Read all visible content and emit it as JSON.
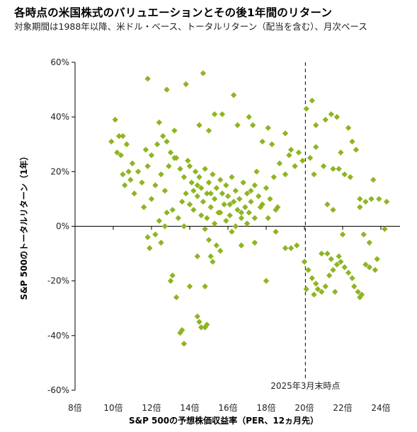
{
  "header": {
    "title": "各時点の米国株式のバリュエーションとその後1年間のリターン",
    "subtitle": "対象期間は1988年以降、米ドル・ベース、トータルリターン（配当を含む）、月次ベース"
  },
  "chart_data": {
    "type": "scatter",
    "xlabel": "S&P 500の予想株価収益率（PER、12ヵ月先）",
    "ylabel": "S&P 500のトータルリターン（1年）",
    "xlim": [
      8,
      25
    ],
    "ylim": [
      -60,
      60
    ],
    "x_ticks": [
      8,
      10,
      12,
      14,
      16,
      18,
      20,
      22,
      24
    ],
    "x_tick_labels": [
      "8倍",
      "10倍",
      "12倍",
      "14倍",
      "16倍",
      "18倍",
      "20倍",
      "22倍",
      "24倍"
    ],
    "y_ticks": [
      60,
      40,
      20,
      0,
      -20,
      -40,
      -60
    ],
    "y_tick_labels": [
      "60%",
      "40%",
      "20%",
      "0%",
      "-20%",
      "-40%",
      "-60%"
    ],
    "grid": false,
    "marker_color": "#8db522",
    "marker_shape": "diamond",
    "reference_line": {
      "x": 20.05,
      "style": "dashed",
      "label": "2025年3月末時点"
    },
    "points": [
      [
        10.1,
        39
      ],
      [
        9.9,
        31
      ],
      [
        10.3,
        33
      ],
      [
        10.5,
        33
      ],
      [
        10.2,
        27
      ],
      [
        10.4,
        26
      ],
      [
        10.7,
        30
      ],
      [
        10.8,
        20
      ],
      [
        11.0,
        23
      ],
      [
        10.9,
        17
      ],
      [
        10.6,
        15
      ],
      [
        11.1,
        12
      ],
      [
        11.5,
        16
      ],
      [
        11.3,
        20
      ],
      [
        10.5,
        19
      ],
      [
        11.8,
        22
      ],
      [
        12.0,
        26
      ],
      [
        11.7,
        28
      ],
      [
        12.4,
        38
      ],
      [
        12.6,
        33
      ],
      [
        12.3,
        30
      ],
      [
        12.8,
        31
      ],
      [
        13.0,
        27
      ],
      [
        13.2,
        25
      ],
      [
        12.9,
        22
      ],
      [
        12.5,
        19
      ],
      [
        12.2,
        15
      ],
      [
        12.7,
        13
      ],
      [
        12.0,
        10
      ],
      [
        11.6,
        7
      ],
      [
        12.8,
        5
      ],
      [
        12.4,
        2
      ],
      [
        12.7,
        0
      ],
      [
        11.8,
        54
      ],
      [
        12.8,
        50
      ],
      [
        13.8,
        52
      ],
      [
        14.7,
        56
      ],
      [
        15.3,
        41
      ],
      [
        15.7,
        41
      ],
      [
        14.5,
        37
      ],
      [
        15.0,
        35
      ],
      [
        16.5,
        37
      ],
      [
        17.1,
        40
      ],
      [
        17.3,
        37
      ],
      [
        18.1,
        36
      ],
      [
        17.8,
        31
      ],
      [
        18.3,
        30
      ],
      [
        19.0,
        34
      ],
      [
        19.3,
        28
      ],
      [
        13.2,
        35
      ],
      [
        16.3,
        48
      ],
      [
        13.3,
        25
      ],
      [
        13.5,
        21
      ],
      [
        13.7,
        18
      ],
      [
        13.9,
        24
      ],
      [
        14.0,
        22
      ],
      [
        14.1,
        16
      ],
      [
        14.2,
        13
      ],
      [
        14.3,
        20
      ],
      [
        14.4,
        11
      ],
      [
        14.5,
        18
      ],
      [
        14.6,
        14
      ],
      [
        14.7,
        9
      ],
      [
        14.8,
        21
      ],
      [
        14.9,
        12
      ],
      [
        15.0,
        16
      ],
      [
        15.1,
        7
      ],
      [
        15.2,
        19
      ],
      [
        15.3,
        10
      ],
      [
        15.4,
        14
      ],
      [
        15.5,
        5
      ],
      [
        15.6,
        17
      ],
      [
        15.7,
        12
      ],
      [
        15.8,
        8
      ],
      [
        15.9,
        15
      ],
      [
        16.0,
        11
      ],
      [
        16.1,
        4
      ],
      [
        16.2,
        18
      ],
      [
        16.3,
        9
      ],
      [
        16.4,
        13
      ],
      [
        16.5,
        6
      ],
      [
        16.6,
        10
      ],
      [
        16.7,
        3
      ],
      [
        16.8,
        16
      ],
      [
        16.9,
        7
      ],
      [
        17.0,
        12
      ],
      [
        17.1,
        5
      ],
      [
        17.2,
        9
      ],
      [
        17.4,
        15
      ],
      [
        17.5,
        20
      ],
      [
        17.6,
        11
      ],
      [
        17.8,
        8
      ],
      [
        18.0,
        14
      ],
      [
        18.2,
        10
      ],
      [
        18.4,
        18
      ],
      [
        18.5,
        6
      ],
      [
        18.7,
        23
      ],
      [
        19.0,
        19
      ],
      [
        19.2,
        26
      ],
      [
        19.5,
        22
      ],
      [
        19.7,
        27
      ],
      [
        19.9,
        24
      ],
      [
        13.6,
        9
      ],
      [
        13.8,
        12
      ],
      [
        14.0,
        8
      ],
      [
        14.2,
        6
      ],
      [
        14.4,
        15
      ],
      [
        14.6,
        4
      ],
      [
        14.9,
        3
      ],
      [
        15.1,
        12
      ],
      [
        15.3,
        1
      ],
      [
        15.6,
        5
      ],
      [
        15.9,
        2
      ],
      [
        16.1,
        8
      ],
      [
        16.4,
        0
      ],
      [
        16.7,
        5
      ],
      [
        17.0,
        1
      ],
      [
        17.2,
        13
      ],
      [
        17.4,
        3
      ],
      [
        17.7,
        7
      ],
      [
        18.1,
        3
      ],
      [
        18.6,
        7
      ],
      [
        13.1,
        6
      ],
      [
        13.4,
        3
      ],
      [
        13.7,
        0
      ],
      [
        12.2,
        -3
      ],
      [
        12.5,
        -6
      ],
      [
        11.8,
        -4
      ],
      [
        11.9,
        -8
      ],
      [
        14.8,
        -1
      ],
      [
        15.0,
        -5
      ],
      [
        15.4,
        -7
      ],
      [
        15.6,
        -9
      ],
      [
        16.2,
        -2
      ],
      [
        16.7,
        -7
      ],
      [
        17.4,
        -6
      ],
      [
        18.5,
        -2
      ],
      [
        19.0,
        -8
      ],
      [
        19.3,
        -8
      ],
      [
        19.6,
        -7
      ],
      [
        18.0,
        -20
      ],
      [
        14.4,
        -11
      ],
      [
        15.1,
        -11
      ],
      [
        15.2,
        -13
      ],
      [
        13.1,
        -18
      ],
      [
        13.0,
        -20
      ],
      [
        13.3,
        -26
      ],
      [
        14.0,
        -22
      ],
      [
        14.8,
        -22
      ],
      [
        13.6,
        -38
      ],
      [
        13.5,
        -39
      ],
      [
        14.4,
        -33
      ],
      [
        14.5,
        -35
      ],
      [
        14.6,
        -37
      ],
      [
        14.8,
        -37
      ],
      [
        14.9,
        -36
      ],
      [
        13.7,
        -43
      ],
      [
        20.1,
        43
      ],
      [
        20.4,
        46
      ],
      [
        20.6,
        37
      ],
      [
        21.1,
        39
      ],
      [
        21.4,
        41
      ],
      [
        21.7,
        40
      ],
      [
        22.3,
        36
      ],
      [
        22.5,
        31
      ],
      [
        21.9,
        27
      ],
      [
        22.7,
        28
      ],
      [
        20.6,
        29
      ],
      [
        20.3,
        25
      ],
      [
        20.5,
        19
      ],
      [
        21.0,
        22
      ],
      [
        21.5,
        21
      ],
      [
        21.8,
        21
      ],
      [
        22.1,
        19
      ],
      [
        22.4,
        18
      ],
      [
        22.9,
        10
      ],
      [
        23.6,
        17
      ],
      [
        23.2,
        9
      ],
      [
        23.5,
        10
      ],
      [
        23.9,
        10
      ],
      [
        24.3,
        9
      ],
      [
        22.9,
        7
      ],
      [
        21.2,
        8
      ],
      [
        21.5,
        6
      ],
      [
        22.0,
        -3
      ],
      [
        23.1,
        -3
      ],
      [
        23.4,
        -6
      ],
      [
        24.2,
        -1
      ],
      [
        21.8,
        -11
      ],
      [
        20.0,
        -13
      ],
      [
        20.2,
        -16
      ],
      [
        20.4,
        -19
      ],
      [
        20.6,
        -21
      ],
      [
        20.7,
        -23
      ],
      [
        20.9,
        -24
      ],
      [
        21.1,
        -22
      ],
      [
        21.3,
        -18
      ],
      [
        21.5,
        -16
      ],
      [
        21.7,
        -14
      ],
      [
        21.9,
        -13
      ],
      [
        22.1,
        -15
      ],
      [
        22.3,
        -17
      ],
      [
        22.5,
        -19
      ],
      [
        22.6,
        -22
      ],
      [
        22.8,
        -24
      ],
      [
        23.0,
        -25
      ],
      [
        23.2,
        -14
      ],
      [
        23.4,
        -15
      ],
      [
        23.7,
        -16
      ],
      [
        20.5,
        -25
      ],
      [
        20.1,
        -23
      ],
      [
        21.4,
        -12
      ],
      [
        21.2,
        -10
      ],
      [
        22.9,
        -26
      ],
      [
        23.8,
        -12
      ],
      [
        20.9,
        -10
      ],
      [
        21.6,
        -24
      ]
    ]
  }
}
